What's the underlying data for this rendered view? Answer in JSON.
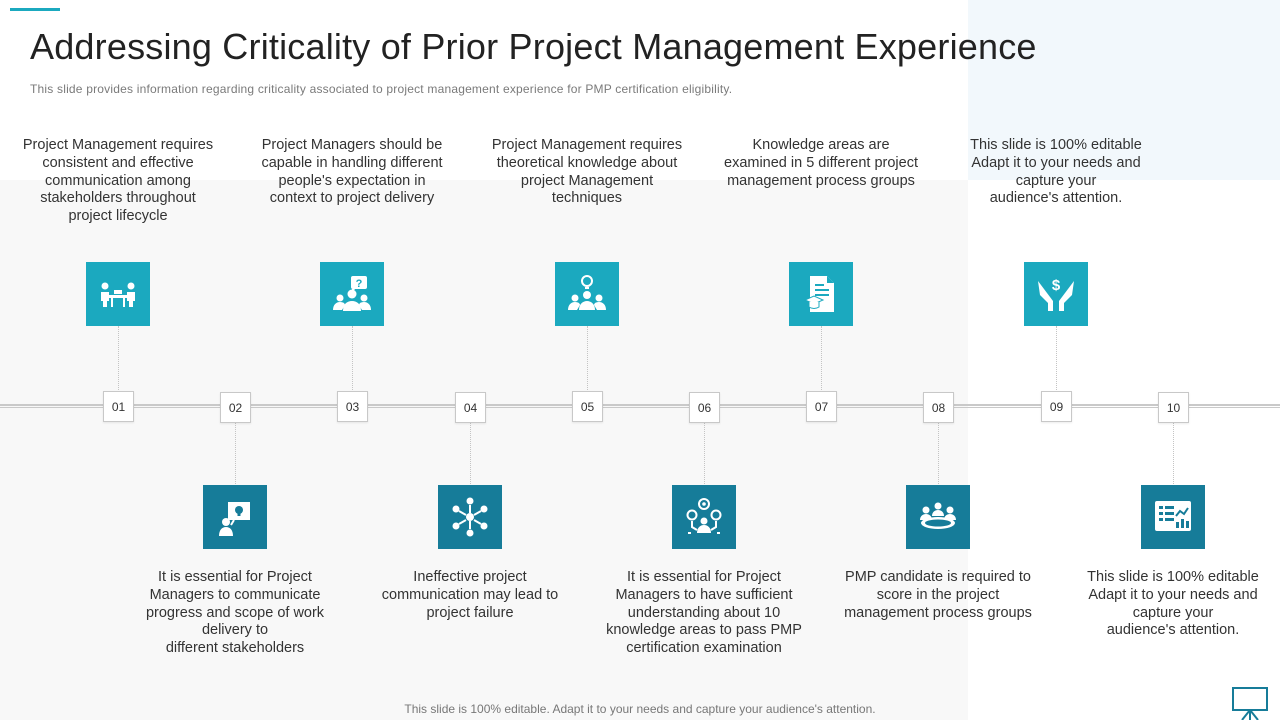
{
  "title": "Addressing Criticality of Prior Project Management Experience",
  "subtitle": "This slide provides  information  regarding  criticality associated to project  management  experience for PMP certification eligibility.",
  "footer": "This slide is 100% editable. Adapt it to your needs and capture your audience's attention.",
  "colors": {
    "accent": "#1ba9bf",
    "dark_accent": "#167c99"
  },
  "steps": [
    {
      "number": "01",
      "position": "top",
      "icon": "meeting-table-icon",
      "text": "Project Management requires\nconsistent and effective\ncommunication among\nstakeholders throughout\nproject lifecycle"
    },
    {
      "number": "02",
      "position": "bottom",
      "icon": "presentation-idea-icon",
      "text": "It is essential for Project\nManagers to communicate\nprogress and scope of work\ndelivery to\ndifferent stakeholders"
    },
    {
      "number": "03",
      "position": "top",
      "icon": "team-question-icon",
      "text": "Project Managers should be\ncapable in handling different\npeople's expectation in\ncontext to project delivery"
    },
    {
      "number": "04",
      "position": "bottom",
      "icon": "network-hub-icon",
      "text": "Ineffective project\ncommunication may lead to\nproject failure"
    },
    {
      "number": "05",
      "position": "top",
      "icon": "team-idea-icon",
      "text": "Project Management requires\ntheoretical knowledge about\nproject Management\ntechniques"
    },
    {
      "number": "06",
      "position": "bottom",
      "icon": "gears-team-icon",
      "text": "It is essential for Project\nManagers to have sufficient\nunderstanding about 10\nknowledge areas to pass PMP\ncertification examination"
    },
    {
      "number": "07",
      "position": "top",
      "icon": "certificate-document-icon",
      "text": "Knowledge areas are\nexamined in 5 different project\nmanagement process groups"
    },
    {
      "number": "08",
      "position": "bottom",
      "icon": "group-meeting-icon",
      "text": "PMP candidate is required to\nscore in the project\nmanagement process groups"
    },
    {
      "number": "09",
      "position": "top",
      "icon": "hands-dollar-icon",
      "text": "This slide is 100% editable\nAdapt it to your needs and\ncapture your\naudience's attention."
    },
    {
      "number": "10",
      "position": "bottom",
      "icon": "dashboard-chart-icon",
      "text": "This slide is 100% editable\nAdapt it to your needs and\ncapture your\naudience's attention."
    }
  ]
}
